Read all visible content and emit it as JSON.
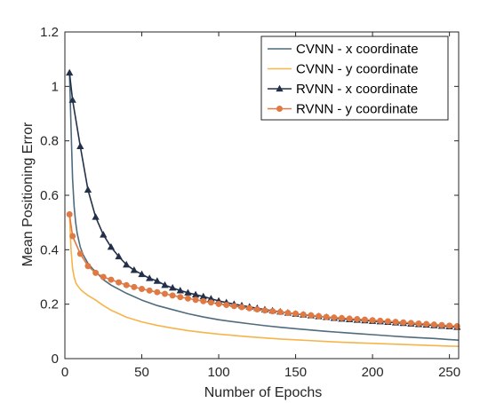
{
  "chart_data": {
    "type": "line",
    "xlabel": "Number of Epochs",
    "ylabel": "Mean Positioning Error",
    "xlim": [
      0,
      256
    ],
    "ylim": [
      0,
      1.2
    ],
    "xticks": [
      0,
      50,
      100,
      150,
      200,
      250
    ],
    "yticks": [
      0,
      0.2,
      0.4,
      0.6,
      0.8,
      1.0,
      1.2
    ],
    "xtick_labels": [
      "0",
      "50",
      "100",
      "150",
      "200",
      "250"
    ],
    "ytick_labels": [
      "0",
      "0.2",
      "0.4",
      "0.6",
      "0.8",
      "1",
      "1.2"
    ],
    "grid": false,
    "legend_position": "top-right",
    "series": [
      {
        "name": "CVNN - x coordinate",
        "color": "#4f6b7e",
        "marker": "none",
        "x": [
          3,
          4,
          5,
          6,
          7,
          8,
          10,
          12,
          15,
          18,
          20,
          25,
          30,
          35,
          40,
          50,
          60,
          70,
          80,
          90,
          100,
          110,
          120,
          130,
          140,
          150,
          160,
          170,
          180,
          190,
          200,
          210,
          220,
          230,
          240,
          250,
          256
        ],
        "y": [
          1.05,
          0.85,
          0.66,
          0.56,
          0.5,
          0.46,
          0.41,
          0.38,
          0.35,
          0.33,
          0.32,
          0.29,
          0.27,
          0.255,
          0.24,
          0.215,
          0.195,
          0.18,
          0.165,
          0.153,
          0.143,
          0.135,
          0.128,
          0.121,
          0.115,
          0.11,
          0.105,
          0.1,
          0.096,
          0.092,
          0.088,
          0.084,
          0.08,
          0.077,
          0.074,
          0.07,
          0.068
        ]
      },
      {
        "name": "CVNN - y coordinate",
        "color": "#f6b44a",
        "marker": "none",
        "x": [
          3,
          4,
          5,
          6,
          7,
          8,
          10,
          12,
          15,
          18,
          20,
          25,
          30,
          35,
          40,
          50,
          60,
          70,
          80,
          90,
          100,
          110,
          120,
          130,
          140,
          150,
          160,
          170,
          180,
          190,
          200,
          210,
          220,
          230,
          240,
          250,
          256
        ],
        "y": [
          0.53,
          0.4,
          0.33,
          0.3,
          0.28,
          0.27,
          0.255,
          0.245,
          0.232,
          0.222,
          0.215,
          0.195,
          0.178,
          0.165,
          0.152,
          0.135,
          0.122,
          0.112,
          0.103,
          0.096,
          0.09,
          0.085,
          0.08,
          0.076,
          0.072,
          0.069,
          0.066,
          0.063,
          0.06,
          0.058,
          0.056,
          0.054,
          0.052,
          0.05,
          0.048,
          0.046,
          0.045
        ]
      },
      {
        "name": "RVNN - x coordinate",
        "color": "#23304a",
        "marker": "triangle",
        "x": [
          3,
          5,
          10,
          15,
          20,
          25,
          30,
          35,
          40,
          45,
          50,
          55,
          60,
          65,
          70,
          75,
          80,
          85,
          90,
          95,
          100,
          105,
          110,
          115,
          120,
          125,
          130,
          135,
          140,
          145,
          150,
          155,
          160,
          165,
          170,
          175,
          180,
          185,
          190,
          195,
          200,
          205,
          210,
          215,
          220,
          225,
          230,
          235,
          240,
          245,
          250,
          255
        ],
        "y": [
          1.05,
          0.95,
          0.78,
          0.62,
          0.52,
          0.455,
          0.41,
          0.375,
          0.345,
          0.325,
          0.31,
          0.295,
          0.285,
          0.27,
          0.26,
          0.25,
          0.242,
          0.235,
          0.228,
          0.22,
          0.212,
          0.206,
          0.2,
          0.195,
          0.19,
          0.185,
          0.18,
          0.176,
          0.172,
          0.168,
          0.164,
          0.161,
          0.158,
          0.155,
          0.152,
          0.149,
          0.146,
          0.144,
          0.142,
          0.14,
          0.138,
          0.136,
          0.134,
          0.132,
          0.13,
          0.128,
          0.126,
          0.124,
          0.122,
          0.12,
          0.118,
          0.116
        ]
      },
      {
        "name": "RVNN - y coordinate",
        "color": "#e07a45",
        "marker": "circle",
        "x": [
          3,
          5,
          10,
          15,
          20,
          25,
          30,
          35,
          40,
          45,
          50,
          55,
          60,
          65,
          70,
          75,
          80,
          85,
          90,
          95,
          100,
          105,
          110,
          115,
          120,
          125,
          130,
          135,
          140,
          145,
          150,
          155,
          160,
          165,
          170,
          175,
          180,
          185,
          190,
          195,
          200,
          205,
          210,
          215,
          220,
          225,
          230,
          235,
          240,
          245,
          250,
          255
        ],
        "y": [
          0.53,
          0.45,
          0.385,
          0.34,
          0.315,
          0.3,
          0.29,
          0.28,
          0.27,
          0.263,
          0.256,
          0.25,
          0.244,
          0.238,
          0.232,
          0.226,
          0.221,
          0.216,
          0.211,
          0.206,
          0.201,
          0.197,
          0.193,
          0.189,
          0.185,
          0.181,
          0.177,
          0.174,
          0.171,
          0.168,
          0.165,
          0.162,
          0.159,
          0.156,
          0.153,
          0.151,
          0.149,
          0.147,
          0.145,
          0.143,
          0.141,
          0.139,
          0.137,
          0.135,
          0.133,
          0.131,
          0.129,
          0.127,
          0.125,
          0.123,
          0.121,
          0.119
        ]
      }
    ]
  }
}
